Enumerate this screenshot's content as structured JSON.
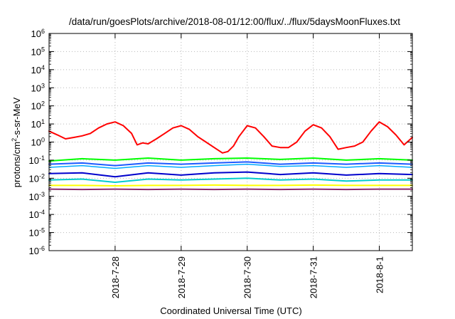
{
  "chart_data": {
    "type": "line",
    "title": "/data/run/goesPlots/archive/2018-08-01/12:00/flux/../flux/5daysMoonFluxes.txt",
    "xlabel": "Coordinated Universal Time (UTC)",
    "ylabel": "protons/cm2-s-sr-MeV",
    "ylabel_parts": {
      "before": "protons/cm",
      "sup": "2",
      "after": "-s-sr-MeV"
    },
    "y_scale": "log",
    "ylim_exp": [
      -6,
      6
    ],
    "y_tick_exponents": [
      -6,
      -5,
      -4,
      -3,
      -2,
      -1,
      0,
      1,
      2,
      3,
      4,
      5,
      6
    ],
    "xlim": [
      "2018-07-27 00:00",
      "2018-08-01 12:00"
    ],
    "x_ticks": [
      {
        "label": "2018-7-28",
        "date": "2018-07-28"
      },
      {
        "label": "2018-7-29",
        "date": "2018-07-29"
      },
      {
        "label": "2018-7-30",
        "date": "2018-07-30"
      },
      {
        "label": "2018-7-31",
        "date": "2018-07-31"
      },
      {
        "label": "2018-8-1",
        "date": "2018-08-01"
      }
    ],
    "grid": true,
    "legend": "none",
    "series": [
      {
        "color": "#ff0000",
        "width": 2,
        "points": [
          [
            "2018-07-27 00:00",
            4.0
          ],
          [
            "2018-07-27 03:00",
            2.5
          ],
          [
            "2018-07-27 06:00",
            1.5
          ],
          [
            "2018-07-27 09:00",
            1.8
          ],
          [
            "2018-07-27 12:00",
            2.2
          ],
          [
            "2018-07-27 15:00",
            3.0
          ],
          [
            "2018-07-27 18:00",
            6.0
          ],
          [
            "2018-07-27 21:00",
            10.0
          ],
          [
            "2018-07-28 00:00",
            13.0
          ],
          [
            "2018-07-28 03:00",
            8.0
          ],
          [
            "2018-07-28 06:00",
            3.0
          ],
          [
            "2018-07-28 08:00",
            0.7
          ],
          [
            "2018-07-28 10:00",
            0.9
          ],
          [
            "2018-07-28 12:00",
            0.8
          ],
          [
            "2018-07-28 15:00",
            1.5
          ],
          [
            "2018-07-28 18:00",
            3.0
          ],
          [
            "2018-07-28 21:00",
            6.0
          ],
          [
            "2018-07-29 00:00",
            8.0
          ],
          [
            "2018-07-29 03:00",
            5.0
          ],
          [
            "2018-07-29 06:00",
            2.0
          ],
          [
            "2018-07-29 09:00",
            1.0
          ],
          [
            "2018-07-29 12:00",
            0.5
          ],
          [
            "2018-07-29 15:00",
            0.25
          ],
          [
            "2018-07-29 17:00",
            0.3
          ],
          [
            "2018-07-29 19:00",
            0.6
          ],
          [
            "2018-07-29 21:00",
            2.0
          ],
          [
            "2018-07-30 00:00",
            8.0
          ],
          [
            "2018-07-30 03:00",
            6.0
          ],
          [
            "2018-07-30 06:00",
            2.0
          ],
          [
            "2018-07-30 09:00",
            0.6
          ],
          [
            "2018-07-30 12:00",
            0.5
          ],
          [
            "2018-07-30 15:00",
            0.5
          ],
          [
            "2018-07-30 18:00",
            1.0
          ],
          [
            "2018-07-30 21:00",
            4.0
          ],
          [
            "2018-07-31 00:00",
            9.0
          ],
          [
            "2018-07-31 03:00",
            6.0
          ],
          [
            "2018-07-31 06:00",
            2.0
          ],
          [
            "2018-07-31 09:00",
            0.4
          ],
          [
            "2018-07-31 12:00",
            0.5
          ],
          [
            "2018-07-31 15:00",
            0.6
          ],
          [
            "2018-07-31 18:00",
            1.0
          ],
          [
            "2018-07-31 21:00",
            4.0
          ],
          [
            "2018-08-01 00:00",
            13.0
          ],
          [
            "2018-08-01 03:00",
            7.0
          ],
          [
            "2018-08-01 06:00",
            2.5
          ],
          [
            "2018-08-01 09:00",
            0.7
          ],
          [
            "2018-08-01 12:00",
            1.8
          ]
        ]
      },
      {
        "color": "#00ff00",
        "width": 2,
        "points": [
          [
            "2018-07-27 00:00",
            0.09
          ],
          [
            "2018-07-27 12:00",
            0.12
          ],
          [
            "2018-07-28 00:00",
            0.1
          ],
          [
            "2018-07-28 12:00",
            0.13
          ],
          [
            "2018-07-29 00:00",
            0.1
          ],
          [
            "2018-07-29 12:00",
            0.12
          ],
          [
            "2018-07-30 00:00",
            0.13
          ],
          [
            "2018-07-30 12:00",
            0.11
          ],
          [
            "2018-07-31 00:00",
            0.13
          ],
          [
            "2018-07-31 12:00",
            0.1
          ],
          [
            "2018-08-01 00:00",
            0.12
          ],
          [
            "2018-08-01 12:00",
            0.1
          ]
        ]
      },
      {
        "color": "#00aaff",
        "width": 1.5,
        "points": [
          [
            "2018-07-27 00:00",
            0.04
          ],
          [
            "2018-07-27 12:00",
            0.05
          ],
          [
            "2018-07-28 00:00",
            0.035
          ],
          [
            "2018-07-28 12:00",
            0.05
          ],
          [
            "2018-07-29 00:00",
            0.04
          ],
          [
            "2018-07-29 12:00",
            0.05
          ],
          [
            "2018-07-30 00:00",
            0.06
          ],
          [
            "2018-07-30 12:00",
            0.045
          ],
          [
            "2018-07-31 00:00",
            0.05
          ],
          [
            "2018-07-31 12:00",
            0.04
          ],
          [
            "2018-08-01 00:00",
            0.05
          ],
          [
            "2018-08-01 12:00",
            0.04
          ]
        ]
      },
      {
        "color": "#1e5aff",
        "width": 2,
        "points": [
          [
            "2018-07-27 00:00",
            0.06
          ],
          [
            "2018-07-27 12:00",
            0.07
          ],
          [
            "2018-07-28 00:00",
            0.05
          ],
          [
            "2018-07-28 12:00",
            0.07
          ],
          [
            "2018-07-29 00:00",
            0.06
          ],
          [
            "2018-07-29 12:00",
            0.07
          ],
          [
            "2018-07-30 00:00",
            0.08
          ],
          [
            "2018-07-30 12:00",
            0.06
          ],
          [
            "2018-07-31 00:00",
            0.07
          ],
          [
            "2018-07-31 12:00",
            0.06
          ],
          [
            "2018-08-01 00:00",
            0.07
          ],
          [
            "2018-08-01 12:00",
            0.06
          ]
        ]
      },
      {
        "color": "#0000cc",
        "width": 2,
        "points": [
          [
            "2018-07-27 00:00",
            0.018
          ],
          [
            "2018-07-27 12:00",
            0.02
          ],
          [
            "2018-07-28 00:00",
            0.012
          ],
          [
            "2018-07-28 12:00",
            0.02
          ],
          [
            "2018-07-29 00:00",
            0.015
          ],
          [
            "2018-07-29 12:00",
            0.02
          ],
          [
            "2018-07-30 00:00",
            0.022
          ],
          [
            "2018-07-30 12:00",
            0.016
          ],
          [
            "2018-07-31 00:00",
            0.02
          ],
          [
            "2018-07-31 12:00",
            0.015
          ],
          [
            "2018-08-01 00:00",
            0.018
          ],
          [
            "2018-08-01 12:00",
            0.016
          ]
        ]
      },
      {
        "color": "#00cccc",
        "width": 2,
        "points": [
          [
            "2018-07-27 00:00",
            0.008
          ],
          [
            "2018-07-27 12:00",
            0.009
          ],
          [
            "2018-07-28 00:00",
            0.006
          ],
          [
            "2018-07-28 12:00",
            0.009
          ],
          [
            "2018-07-29 00:00",
            0.008
          ],
          [
            "2018-07-29 12:00",
            0.009
          ],
          [
            "2018-07-30 00:00",
            0.01
          ],
          [
            "2018-07-30 12:00",
            0.008
          ],
          [
            "2018-07-31 00:00",
            0.009
          ],
          [
            "2018-07-31 12:00",
            0.007
          ],
          [
            "2018-08-01 00:00",
            0.008
          ],
          [
            "2018-08-01 12:00",
            0.008
          ]
        ]
      },
      {
        "color": "#ffff00",
        "width": 2,
        "points": [
          [
            "2018-07-27 00:00",
            0.004
          ],
          [
            "2018-07-27 12:00",
            0.004
          ],
          [
            "2018-07-28 00:00",
            0.0038
          ],
          [
            "2018-07-28 12:00",
            0.004
          ],
          [
            "2018-07-29 00:00",
            0.004
          ],
          [
            "2018-07-29 12:00",
            0.0042
          ],
          [
            "2018-07-30 00:00",
            0.004
          ],
          [
            "2018-07-30 12:00",
            0.004
          ],
          [
            "2018-07-31 00:00",
            0.0042
          ],
          [
            "2018-07-31 12:00",
            0.004
          ],
          [
            "2018-08-01 00:00",
            0.004
          ],
          [
            "2018-08-01 12:00",
            0.004
          ]
        ]
      },
      {
        "color": "#8b2a6b",
        "width": 2,
        "points": [
          [
            "2018-07-27 00:00",
            0.0025
          ],
          [
            "2018-07-27 12:00",
            0.0024
          ],
          [
            "2018-07-28 00:00",
            0.0025
          ],
          [
            "2018-07-28 12:00",
            0.0024
          ],
          [
            "2018-07-29 00:00",
            0.0025
          ],
          [
            "2018-07-29 12:00",
            0.0024
          ],
          [
            "2018-07-30 00:00",
            0.0025
          ],
          [
            "2018-07-30 12:00",
            0.0024
          ],
          [
            "2018-07-31 00:00",
            0.0025
          ],
          [
            "2018-07-31 12:00",
            0.0024
          ],
          [
            "2018-08-01 00:00",
            0.0025
          ],
          [
            "2018-08-01 12:00",
            0.0025
          ]
        ]
      }
    ]
  }
}
